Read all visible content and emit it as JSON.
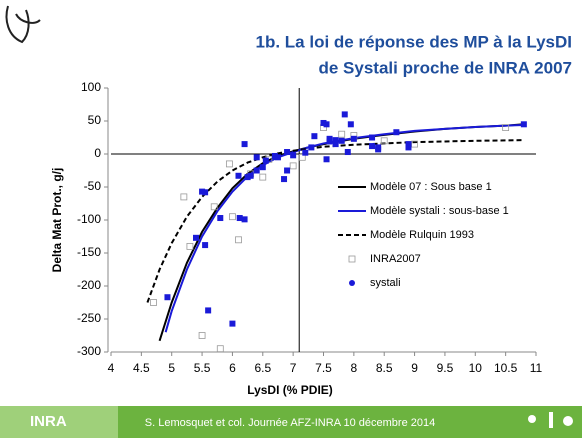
{
  "header": {
    "title_lines": [
      "1b. La loi de réponse des MP à la LysDI",
      "de Systali proche de INRA 2007"
    ]
  },
  "chart_data": {
    "type": "scatter",
    "xlabel": "LysDI (% PDIE)",
    "ylabel": "Delta Mat Prot., g/j",
    "xlim": [
      4,
      11
    ],
    "ylim": [
      -300,
      100
    ],
    "xticks": [
      4,
      4.5,
      5,
      5.5,
      6,
      6.5,
      7,
      7.5,
      8,
      8.5,
      9,
      9.5,
      10,
      10.5,
      11
    ],
    "yticks": [
      -300,
      -250,
      -200,
      -150,
      -100,
      -50,
      0,
      50,
      100
    ],
    "reference_x": 7.1,
    "series": [
      {
        "name": "Modèle 07 : Sous base 1",
        "color": "#000000",
        "mode": "line",
        "x": [
          4.8,
          5.0,
          5.25,
          5.5,
          5.75,
          6.0,
          6.25,
          6.5,
          6.75,
          7.0,
          7.25,
          7.5,
          8.0,
          8.5,
          9.0,
          9.5,
          10.0,
          10.5,
          10.8
        ],
        "values": [
          -283,
          -225,
          -165,
          -118,
          -82,
          -52,
          -30,
          -14,
          -3,
          4,
          10,
          15,
          23,
          29,
          34,
          38,
          41,
          43,
          45
        ]
      },
      {
        "name": "Modèle systali : sous-base 1",
        "color": "#1a1ad8",
        "mode": "line",
        "x": [
          4.9,
          5.0,
          5.25,
          5.5,
          5.75,
          6.0,
          6.25,
          6.5,
          6.75,
          7.0,
          7.25,
          7.5,
          8.0,
          8.5,
          9.0,
          9.5,
          10.0,
          10.5,
          10.8
        ],
        "values": [
          -270,
          -238,
          -175,
          -125,
          -87,
          -57,
          -34,
          -17,
          -5,
          3,
          10,
          16,
          24,
          30,
          35,
          38,
          41,
          43,
          44
        ]
      },
      {
        "name": "Modèle Rulquin 1993",
        "color": "#000000",
        "mode": "dashed",
        "x": [
          4.6,
          4.8,
          5.0,
          5.25,
          5.5,
          5.75,
          6.0,
          6.25,
          6.5,
          6.75,
          7.0,
          7.25,
          7.5,
          8.0,
          8.5,
          9.0,
          9.5,
          10.0,
          10.8
        ],
        "values": [
          -225,
          -175,
          -135,
          -95,
          -65,
          -42,
          -25,
          -13,
          -5,
          1,
          5,
          8,
          11,
          14,
          16,
          18,
          19,
          20,
          21
        ]
      },
      {
        "name": "INRA2007",
        "color": "#999999",
        "mode": "open",
        "x": [
          4.7,
          5.2,
          5.3,
          5.5,
          5.7,
          5.8,
          5.95,
          6.0,
          6.1,
          6.3,
          6.5,
          6.6,
          7.0,
          7.15,
          7.5,
          7.8,
          8.0,
          8.5,
          9.0,
          10.5
        ],
        "values": [
          -225,
          -65,
          -140,
          -275,
          -80,
          -295,
          -15,
          -95,
          -130,
          -30,
          -35,
          -8,
          -18,
          -5,
          40,
          30,
          28,
          20,
          15,
          40
        ]
      },
      {
        "name": "systali",
        "color": "#1a1ad8",
        "mode": "filled",
        "x": [
          4.93,
          5.4,
          5.5,
          5.55,
          5.55,
          5.6,
          5.8,
          6.0,
          6.1,
          6.12,
          6.2,
          6.2,
          6.25,
          6.3,
          6.4,
          6.4,
          6.5,
          6.55,
          6.7,
          6.75,
          6.85,
          6.9,
          6.9,
          7.0,
          7.2,
          7.3,
          7.35,
          7.5,
          7.55,
          7.6,
          7.6,
          7.55,
          7.7,
          7.7,
          7.8,
          7.85,
          7.9,
          7.95,
          8.0,
          8.3,
          8.3,
          8.4,
          8.4,
          8.7,
          8.9,
          8.9,
          10.8
        ],
        "values": [
          -217,
          -127,
          -57,
          -58,
          -138,
          -237,
          -97,
          -257,
          -33,
          -97,
          -99,
          15,
          -35,
          -33,
          -5,
          -25,
          -20,
          -10,
          -3,
          -5,
          -38,
          -25,
          3,
          -2,
          2,
          10,
          27,
          47,
          45,
          23,
          19,
          -8,
          15,
          21,
          20,
          60,
          3,
          45,
          23,
          25,
          12,
          10,
          7,
          33,
          10,
          15,
          45
        ]
      }
    ]
  },
  "footer": {
    "logo": "INRA",
    "text": "S. Lemosquet et col. Journée AFZ-INRA 10 décembre 2014"
  }
}
